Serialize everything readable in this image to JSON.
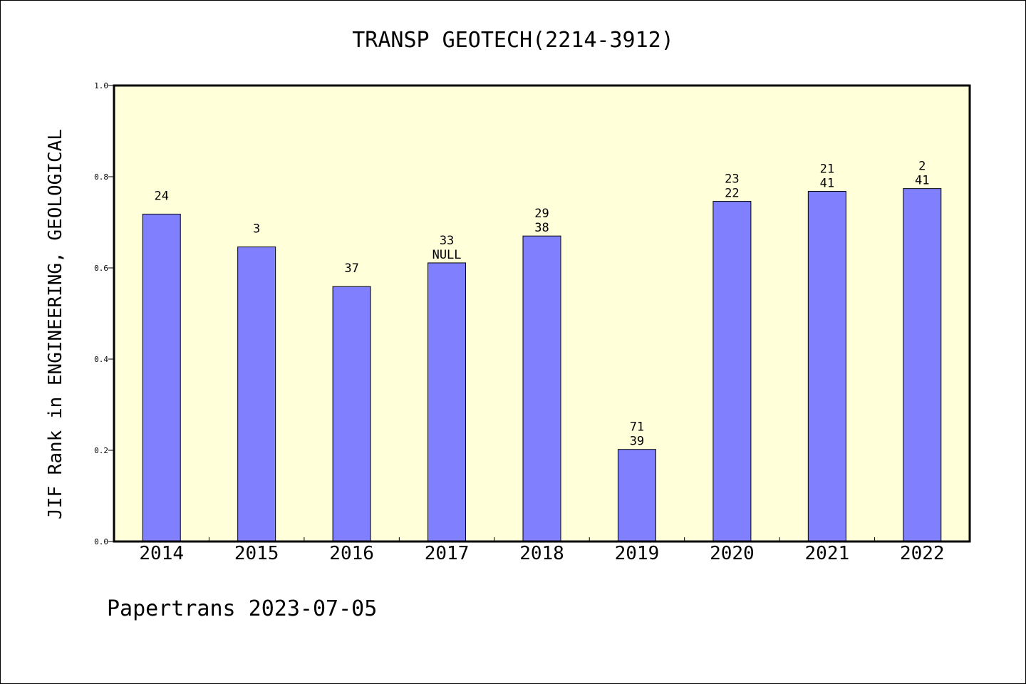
{
  "chart_data": {
    "type": "bar",
    "title": "TRANSP GEOTECH(2214-3912)",
    "ylabel": "JIF Rank in ENGINEERING, GEOLOGICAL",
    "xlabel": "",
    "footer": "Papertrans 2023-07-05",
    "categories": [
      "2014",
      "2015",
      "2016",
      "2017",
      "2018",
      "2019",
      "2020",
      "2021",
      "2022"
    ],
    "values": [
      0.718,
      0.646,
      0.559,
      0.611,
      0.67,
      0.202,
      0.746,
      0.768,
      0.774
    ],
    "labels_top": [
      "24",
      "3",
      "37",
      "33",
      "29",
      "71",
      "23",
      "21",
      "2"
    ],
    "labels_bottom": [
      "",
      "",
      "",
      "NULL",
      "38",
      "39",
      "22",
      "41",
      "41"
    ],
    "ylim": [
      0,
      1.0
    ],
    "yticks": [
      "0.0",
      "0.2",
      "0.4",
      "0.6",
      "0.8",
      "1.0"
    ],
    "grid": false,
    "colors": {
      "bar": "#8080ff",
      "plot_background": "#ffffd9",
      "axis": "#000000"
    }
  }
}
